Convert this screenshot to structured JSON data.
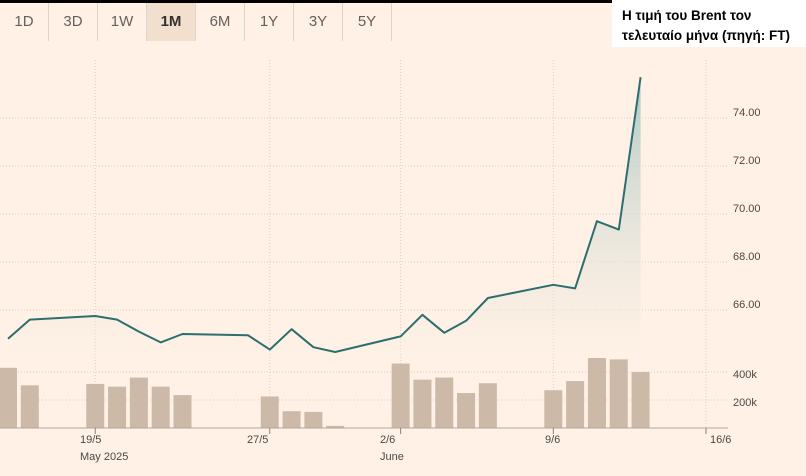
{
  "range_tabs": [
    {
      "label": "1D",
      "active": false
    },
    {
      "label": "3D",
      "active": false
    },
    {
      "label": "1W",
      "active": false
    },
    {
      "label": "1M",
      "active": true
    },
    {
      "label": "6M",
      "active": false
    },
    {
      "label": "1Y",
      "active": false
    },
    {
      "label": "3Y",
      "active": false
    },
    {
      "label": "5Y",
      "active": false
    }
  ],
  "caption": {
    "line1": "Η τιμή του Brent τον",
    "line2": "τελευταίο μήνα (πηγή: FT)"
  },
  "colors": {
    "background": "#fff1e5",
    "line": "#2d6e6e",
    "area_top": "#aac6c3",
    "volume_bar": "#cdb9a8",
    "gridline": "#d9cdc1"
  },
  "chart_data": [
    {
      "type": "line",
      "series": [
        {
          "x": [
            "2025-05-15",
            "2025-05-16",
            "2025-05-19",
            "2025-05-20",
            "2025-05-21",
            "2025-05-22",
            "2025-05-23",
            "2025-05-26",
            "2025-05-27",
            "2025-05-28",
            "2025-05-29",
            "2025-05-30",
            "2025-06-02",
            "2025-06-03",
            "2025-06-04",
            "2025-06-05",
            "2025-06-06",
            "2025-06-09",
            "2025-06-10",
            "2025-06-11",
            "2025-06-12",
            "2025-06-13"
          ],
          "y": [
            64.8,
            65.6,
            65.75,
            65.6,
            65.1,
            64.65,
            65.0,
            64.95,
            64.35,
            65.2,
            64.45,
            64.25,
            64.9,
            65.8,
            65.05,
            65.55,
            66.5,
            67.05,
            66.9,
            69.7,
            69.35,
            75.7
          ]
        }
      ],
      "y_ticks": [
        "66.00",
        "68.00",
        "70.00",
        "72.00",
        "74.00"
      ],
      "ylim": [
        64,
        76
      ],
      "x_ticks": [
        "19/5",
        "27/5",
        "2/6",
        "9/6",
        "16/6"
      ],
      "x_month_labels": [
        "May 2025",
        "June"
      ],
      "y_axis_side": "right",
      "grid": true
    },
    {
      "type": "bar",
      "categories": [
        "2025-05-15",
        "2025-05-16",
        "2025-05-19",
        "2025-05-20",
        "2025-05-21",
        "2025-05-22",
        "2025-05-23",
        "2025-05-27",
        "2025-05-28",
        "2025-05-29",
        "2025-05-30",
        "2025-06-02",
        "2025-06-03",
        "2025-06-04",
        "2025-06-05",
        "2025-06-06",
        "2025-06-09",
        "2025-06-10",
        "2025-06-11",
        "2025-06-12",
        "2025-06-13"
      ],
      "values": [
        430000,
        305000,
        315000,
        295000,
        360000,
        295000,
        235000,
        225000,
        120000,
        115000,
        15000,
        460000,
        345000,
        360000,
        250000,
        320000,
        270000,
        335000,
        500000,
        490000,
        400000
      ],
      "y_ticks": [
        "200k",
        "400k"
      ],
      "ylim": [
        0,
        540000
      ],
      "grid": true
    }
  ]
}
